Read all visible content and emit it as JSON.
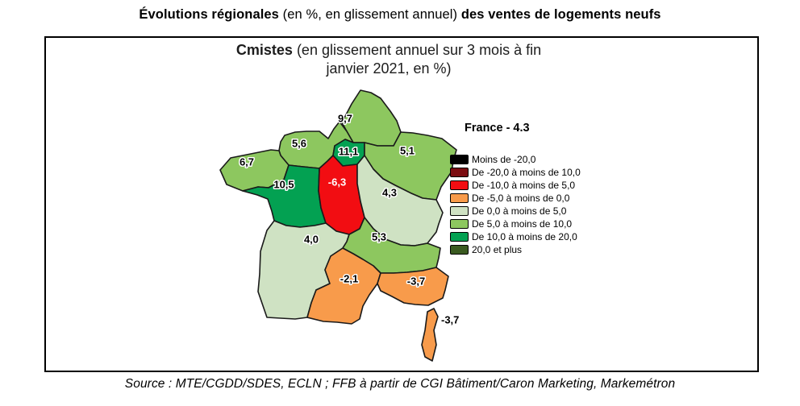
{
  "title": {
    "lead": "Évolutions régionales",
    "middle": " (en %, en glissement annuel) ",
    "tail": "des ventes de logements neufs"
  },
  "map_panel": {
    "subtitle_bold": "Cmistes",
    "subtitle_rest": " (en glissement annuel sur 3 mois à fin janvier 2021, en %)",
    "france_label": "France - 4.3",
    "legend": [
      {
        "label": "Moins de -20,0",
        "color": "#000000"
      },
      {
        "label": "De -20,0 à moins de 10,0",
        "color": "#7B0C10"
      },
      {
        "label": "De -10,0 à moins de 5,0",
        "color": "#F20D12"
      },
      {
        "label": "De -5,0 à moins de 0,0",
        "color": "#F89B4B"
      },
      {
        "label": "De 0,0 à moins de 5,0",
        "color": "#CFE2C3"
      },
      {
        "label": "De 5,0 à moins de 10,0",
        "color": "#8DC75F"
      },
      {
        "label": "De 10,0 à moins de 20,0",
        "color": "#03A152"
      },
      {
        "label": "20,0 et plus",
        "color": "#3A5A20"
      }
    ],
    "regions": [
      {
        "id": "hauts-de-france",
        "value": "9,7",
        "color": "#8DC75F",
        "text": "black"
      },
      {
        "id": "normandie",
        "value": "5,6",
        "color": "#8DC75F",
        "text": "black"
      },
      {
        "id": "ile-de-france",
        "value": "11,1",
        "color": "#03A152",
        "text": "black"
      },
      {
        "id": "grand-est",
        "value": "5,1",
        "color": "#8DC75F",
        "text": "black"
      },
      {
        "id": "bretagne",
        "value": "6,7",
        "color": "#8DC75F",
        "text": "black"
      },
      {
        "id": "pays-de-la-loire",
        "value": "10,5",
        "color": "#03A152",
        "text": "black"
      },
      {
        "id": "centre-val-de-loire",
        "value": "-6,3",
        "color": "#F20D12",
        "text": "white"
      },
      {
        "id": "bourgogne-franche-comte",
        "value": "4,3",
        "color": "#CFE2C3",
        "text": "black"
      },
      {
        "id": "nouvelle-aquitaine",
        "value": "4,0",
        "color": "#CFE2C3",
        "text": "black"
      },
      {
        "id": "auvergne-rhone-alpes",
        "value": "5,3",
        "color": "#8DC75F",
        "text": "black"
      },
      {
        "id": "occitanie",
        "value": "-2,1",
        "color": "#F89B4B",
        "text": "black"
      },
      {
        "id": "provence-alpes-cote-d-azur",
        "value": "-3,7",
        "color": "#F89B4B",
        "text": "black"
      },
      {
        "id": "corse",
        "value": "-3,7",
        "color": "#F89B4B",
        "text": "black"
      }
    ]
  },
  "source": "Source : MTE/CGDD/SDES, ECLN ; FFB à partir de CGI Bâtiment/Caron Marketing, Markemétron",
  "chart_data": {
    "type": "choropleth",
    "title": "Cmistes (en glissement annuel sur 3 mois à fin janvier 2021, en %)",
    "figure_title": "Évolutions régionales (en %, en glissement annuel) des ventes de logements neufs",
    "france_total": 4.3,
    "unit": "%",
    "regions": [
      {
        "region": "Hauts-de-France",
        "value": 9.7
      },
      {
        "region": "Normandie",
        "value": 5.6
      },
      {
        "region": "Île-de-France",
        "value": 11.1
      },
      {
        "region": "Grand Est",
        "value": 5.1
      },
      {
        "region": "Bretagne",
        "value": 6.7
      },
      {
        "region": "Pays de la Loire",
        "value": 10.5
      },
      {
        "region": "Centre-Val de Loire",
        "value": -6.3
      },
      {
        "region": "Bourgogne-Franche-Comté",
        "value": 4.3
      },
      {
        "region": "Nouvelle-Aquitaine",
        "value": 4.0
      },
      {
        "region": "Auvergne-Rhône-Alpes",
        "value": 5.3
      },
      {
        "region": "Occitanie",
        "value": -2.1
      },
      {
        "region": "Provence-Alpes-Côte d'Azur",
        "value": -3.7
      },
      {
        "region": "Corse",
        "value": -3.7
      }
    ],
    "legend_bins": [
      {
        "label": "Moins de -20,0",
        "color": "#000000"
      },
      {
        "label": "De -20,0 à moins de 10,0",
        "color": "#7B0C10"
      },
      {
        "label": "De -10,0 à moins de 5,0",
        "color": "#F20D12"
      },
      {
        "label": "De -5,0 à moins de 0,0",
        "color": "#F89B4B"
      },
      {
        "label": "De 0,0 à moins de 5,0",
        "color": "#CFE2C3"
      },
      {
        "label": "De 5,0 à moins de 10,0",
        "color": "#8DC75F"
      },
      {
        "label": "De 10,0 à moins de 20,0",
        "color": "#03A152"
      },
      {
        "label": "20,0 et plus",
        "color": "#3A5A20"
      }
    ],
    "legend_position": "right"
  }
}
